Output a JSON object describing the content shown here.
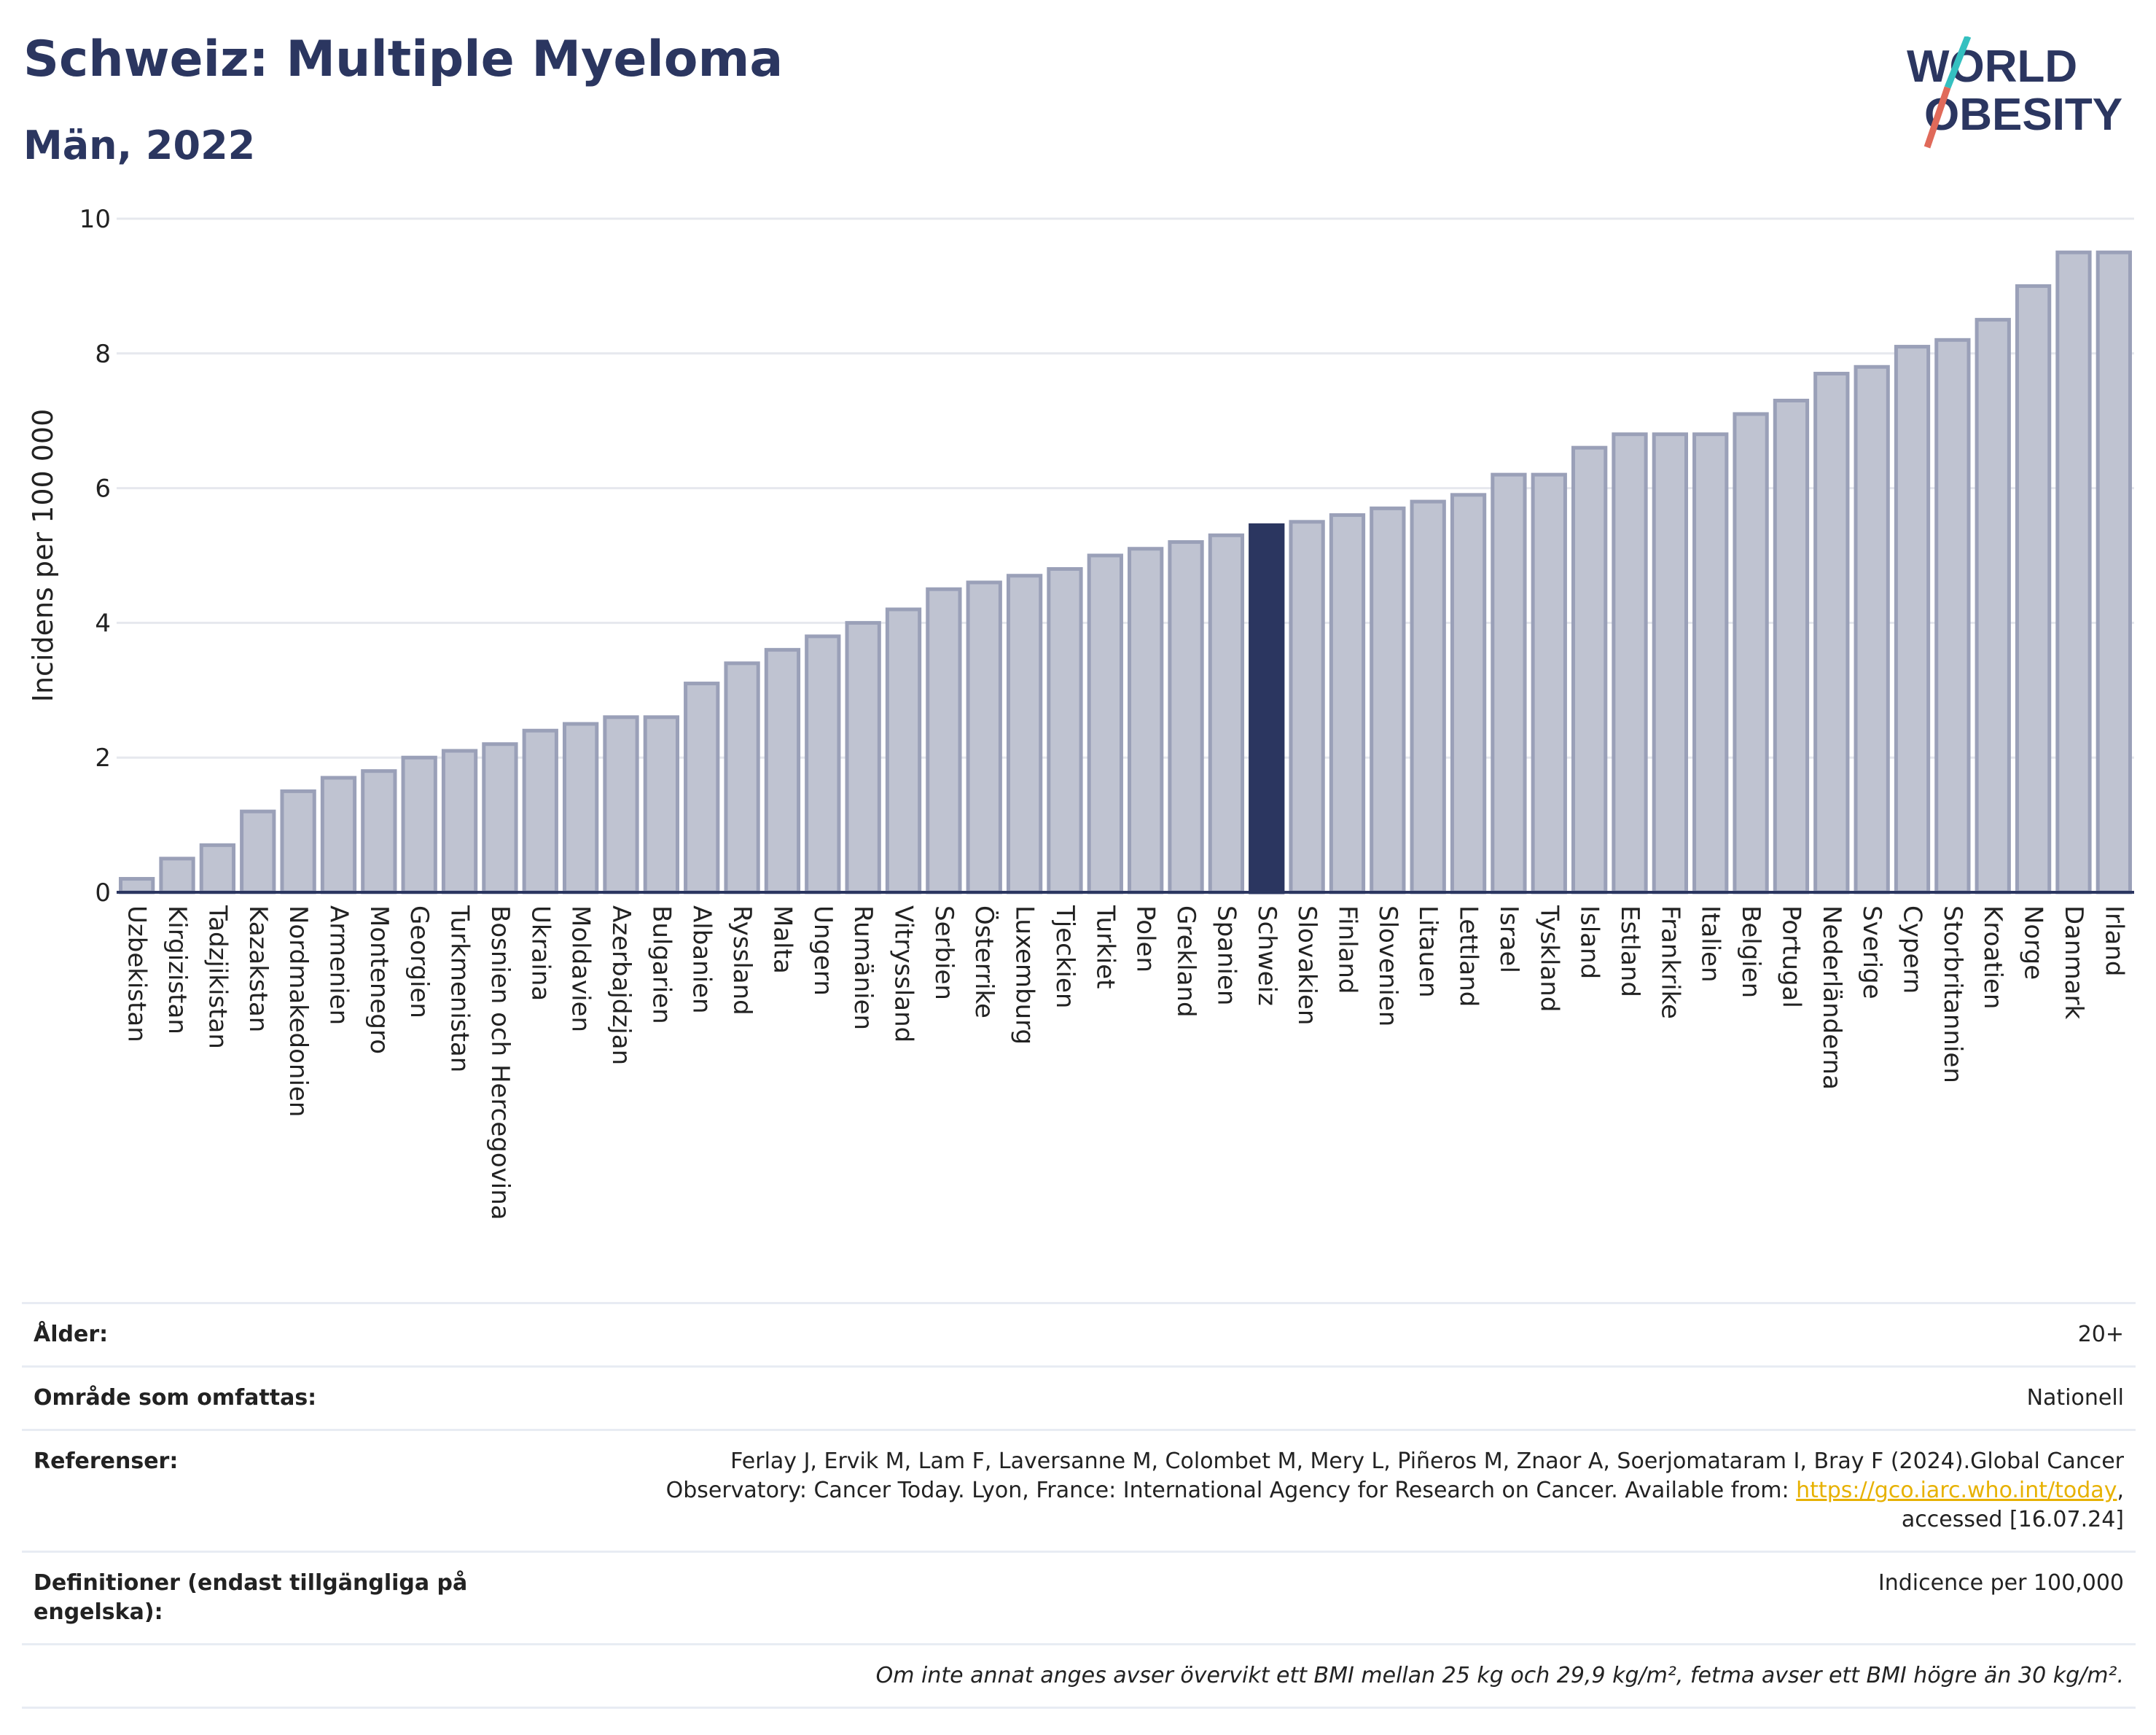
{
  "header": {
    "title": "Schweiz: Multiple Myeloma",
    "subtitle": "Män, 2022",
    "logo_line1": "WORLD",
    "logo_line2": "OBESITY"
  },
  "colors": {
    "title": "#2b3660",
    "bar": "#bfc3d1",
    "bar_stroke": "#9aa0b8",
    "highlight": "#2b3660",
    "logo_slash_teal": "#35c0c0",
    "logo_slash_red": "#e06a5a",
    "link": "#e7b100"
  },
  "chart_data": {
    "type": "bar",
    "title": "",
    "xlabel": "",
    "ylabel": "Incidens per 100 000",
    "ylim": [
      0,
      10
    ],
    "yticks": [
      0,
      2,
      4,
      6,
      8,
      10
    ],
    "grid": true,
    "highlight": "Schweiz",
    "categories": [
      "Uzbekistan",
      "Kirgizistan",
      "Tadzjikistan",
      "Kazakstan",
      "Nordmakedonien",
      "Armenien",
      "Montenegro",
      "Georgien",
      "Turkmenistan",
      "Bosnien och Hercegovina",
      "Ukraina",
      "Moldavien",
      "Azerbajdzjan",
      "Bulgarien",
      "Albanien",
      "Ryssland",
      "Malta",
      "Ungern",
      "Rumänien",
      "Vitryssland",
      "Serbien",
      "Österrike",
      "Luxemburg",
      "Tjeckien",
      "Turkiet",
      "Polen",
      "Grekland",
      "Spanien",
      "Schweiz",
      "Slovakien",
      "Finland",
      "Slovenien",
      "Litauen",
      "Lettland",
      "Israel",
      "Tyskland",
      "Island",
      "Estland",
      "Frankrike",
      "Italien",
      "Belgien",
      "Portugal",
      "Nederländerna",
      "Sverige",
      "Cypern",
      "Storbritannien",
      "Kroatien",
      "Norge",
      "Danmark",
      "Irland"
    ],
    "values": [
      0.2,
      0.5,
      0.7,
      1.2,
      1.5,
      1.7,
      1.8,
      2.0,
      2.1,
      2.2,
      2.4,
      2.5,
      2.6,
      2.6,
      3.1,
      3.4,
      3.6,
      3.8,
      4.0,
      4.2,
      4.5,
      4.6,
      4.7,
      4.8,
      5.0,
      5.1,
      5.2,
      5.3,
      5.45,
      5.5,
      5.6,
      5.7,
      5.8,
      5.9,
      6.2,
      6.2,
      6.6,
      6.8,
      6.8,
      6.8,
      7.1,
      7.3,
      7.7,
      7.8,
      8.1,
      8.2,
      8.5,
      9.0,
      9.5,
      9.5
    ]
  },
  "info": {
    "age_label": "Ålder:",
    "age_value": "20+",
    "area_label": "Område som omfattas:",
    "area_value": "Nationell",
    "refs_label": "Referenser:",
    "refs_text1": "Ferlay J, Ervik M, Lam F, Laversanne M, Colombet M, Mery L, Piñeros M, Znaor A, Soerjomataram I, Bray F (2024).Global Cancer Observatory: Cancer Today. Lyon, France: International Agency for Research on Cancer. Available from: ",
    "refs_link": "https://gco.iarc.who.int/today",
    "refs_text2": ", accessed [16.07.24]",
    "defs_label": "Definitioner (endast tillgängliga på engelska):",
    "defs_value": "Indicence per 100,000",
    "note": "Om inte annat anges avser övervikt ett BMI mellan 25 kg och 29,9 kg/m², fetma avser ett BMI högre än 30 kg/m²."
  }
}
